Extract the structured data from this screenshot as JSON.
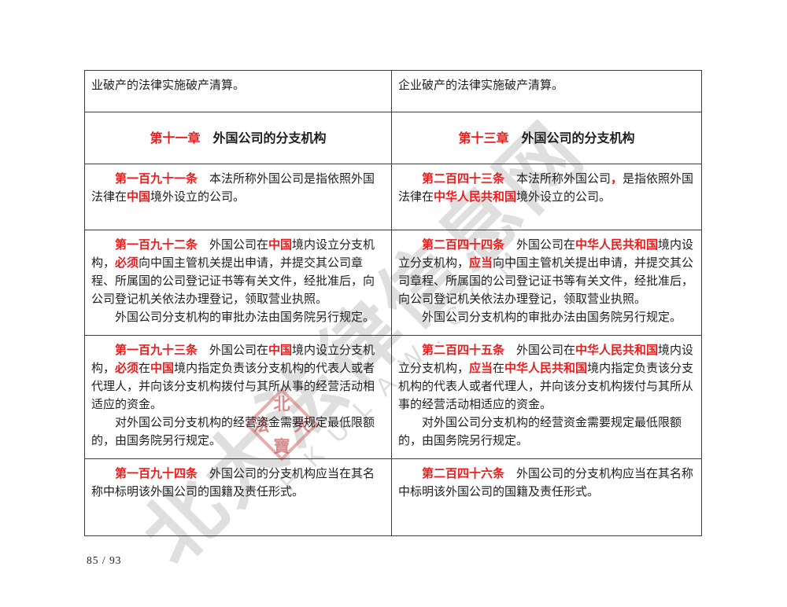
{
  "page": {
    "number_label": "85 / 93"
  },
  "colors": {
    "accent_red": "#ed1c1c",
    "border": "#3c3c3c",
    "watermark_gray": "#949494",
    "seal_pink": "#d67676"
  },
  "watermark": {
    "diagonal_text": "北大法律信息网",
    "latin_text": "PKULAW.COM",
    "seal_chars": {
      "top": "北",
      "right": "大",
      "left": "法",
      "bottom": "寶"
    }
  },
  "table": {
    "rows": [
      {
        "kind": "continuation",
        "left": {
          "paragraphs": [
            {
              "indent": false,
              "runs": [
                {
                  "t": "业破产的法律实施破产清算。",
                  "s": "p"
                }
              ]
            }
          ]
        },
        "right": {
          "paragraphs": [
            {
              "indent": false,
              "runs": [
                {
                  "t": "企业破产的法律实施破产清算。",
                  "s": "p"
                }
              ]
            }
          ]
        }
      },
      {
        "kind": "chapter",
        "left": {
          "paragraphs": [
            {
              "runs": [
                {
                  "t": "第十一章",
                  "s": "rb"
                },
                {
                  "t": "　",
                  "s": "b"
                },
                {
                  "t": "外国公司的分支机构",
                  "s": "b"
                }
              ]
            }
          ]
        },
        "right": {
          "paragraphs": [
            {
              "runs": [
                {
                  "t": "第十三章",
                  "s": "rb"
                },
                {
                  "t": "　",
                  "s": "b"
                },
                {
                  "t": "外国公司的分支机构",
                  "s": "b"
                }
              ]
            }
          ]
        }
      },
      {
        "kind": "article",
        "left": {
          "paragraphs": [
            {
              "indent": true,
              "runs": [
                {
                  "t": "第一百九十一条",
                  "s": "rb"
                },
                {
                  "t": "　本法所称外国公司是指依照外国法律在",
                  "s": "p"
                },
                {
                  "t": "中国",
                  "s": "rb"
                },
                {
                  "t": "境外设立的公司。",
                  "s": "p"
                }
              ]
            }
          ]
        },
        "right": {
          "paragraphs": [
            {
              "indent": true,
              "runs": [
                {
                  "t": "第二百四十三条",
                  "s": "rb"
                },
                {
                  "t": "　本法所称外国公司",
                  "s": "p"
                },
                {
                  "t": "，",
                  "s": "rb"
                },
                {
                  "t": "是指依照外国法律在",
                  "s": "p"
                },
                {
                  "t": "中华人民共和国",
                  "s": "rb"
                },
                {
                  "t": "境外设立的公司。",
                  "s": "p"
                }
              ]
            }
          ]
        }
      },
      {
        "kind": "article",
        "left": {
          "paragraphs": [
            {
              "indent": true,
              "runs": [
                {
                  "t": "第一百九十二条",
                  "s": "rb"
                },
                {
                  "t": "　外国公司在",
                  "s": "p"
                },
                {
                  "t": "中国",
                  "s": "rb"
                },
                {
                  "t": "境内设立分支机构，",
                  "s": "p"
                },
                {
                  "t": "必须",
                  "s": "rb"
                },
                {
                  "t": "向中国主管机关提出申请，并提交其公司章程、所属国的公司登记证书等有关文件，经批准后，向公司登记机关依法办理登记，领取营业执照。",
                  "s": "p"
                }
              ]
            },
            {
              "indent": true,
              "runs": [
                {
                  "t": "外国公司分支机构的审批办法由国务院另行规定。",
                  "s": "p"
                }
              ]
            }
          ]
        },
        "right": {
          "paragraphs": [
            {
              "indent": true,
              "runs": [
                {
                  "t": "第二百四十四条",
                  "s": "rb"
                },
                {
                  "t": "　外国公司在",
                  "s": "p"
                },
                {
                  "t": "中华人民共和国",
                  "s": "rb"
                },
                {
                  "t": "境内设立分支机构，",
                  "s": "p"
                },
                {
                  "t": "应当",
                  "s": "rb"
                },
                {
                  "t": "向中国主管机关提出申请，并提交其公司章程、所属国的公司登记证书等有关文件，经批准后，向公司登记机关依法办理登记，领取营业执照。",
                  "s": "p"
                }
              ]
            },
            {
              "indent": true,
              "runs": [
                {
                  "t": "外国公司分支机构的审批办法由国务院另行规定。",
                  "s": "p"
                }
              ]
            }
          ]
        }
      },
      {
        "kind": "article",
        "left": {
          "paragraphs": [
            {
              "indent": true,
              "runs": [
                {
                  "t": "第一百九十三条",
                  "s": "rb"
                },
                {
                  "t": "　外国公司在",
                  "s": "p"
                },
                {
                  "t": "中国",
                  "s": "rb"
                },
                {
                  "t": "境内设立分支机构，",
                  "s": "p"
                },
                {
                  "t": "必须",
                  "s": "rb"
                },
                {
                  "t": "在",
                  "s": "p"
                },
                {
                  "t": "中国",
                  "s": "rb"
                },
                {
                  "t": "境内指定负责该分支机构的代表人或者代理人，并向该分支机构拨付与其所从事的经营活动相适应的资金。",
                  "s": "p"
                }
              ]
            },
            {
              "indent": true,
              "runs": [
                {
                  "t": "对外国公司分支机构的经营资金需要规定最低限额的，由国务院另行规定。",
                  "s": "p"
                }
              ]
            }
          ]
        },
        "right": {
          "paragraphs": [
            {
              "indent": true,
              "runs": [
                {
                  "t": "第二百四十五条",
                  "s": "rb"
                },
                {
                  "t": "　外国公司在",
                  "s": "p"
                },
                {
                  "t": "中华人民共和国",
                  "s": "rb"
                },
                {
                  "t": "境内设立分支机构，",
                  "s": "p"
                },
                {
                  "t": "应当",
                  "s": "rb"
                },
                {
                  "t": "在",
                  "s": "p"
                },
                {
                  "t": "中华人民共和国",
                  "s": "rb"
                },
                {
                  "t": "境内指定负责该分支机构的代表人或者代理人，并向该分支机构拨付与其所从事的经营活动相适应的资金。",
                  "s": "p"
                }
              ]
            },
            {
              "indent": true,
              "runs": [
                {
                  "t": "对外国公司分支机构的经营资金需要规定最低限额的，由国务院另行规定。",
                  "s": "p"
                }
              ]
            }
          ]
        }
      },
      {
        "kind": "article",
        "left": {
          "paragraphs": [
            {
              "indent": true,
              "runs": [
                {
                  "t": "第一百九十四条",
                  "s": "rb"
                },
                {
                  "t": "　外国公司的分支机构应当在其名称中标明该外国公司的国籍及责任形式。",
                  "s": "p"
                }
              ]
            }
          ]
        },
        "right": {
          "paragraphs": [
            {
              "indent": true,
              "runs": [
                {
                  "t": "第二百四十六条",
                  "s": "rb"
                },
                {
                  "t": "　外国公司的分支机构应当在其名称中标明该外国公司的国籍及责任形式。",
                  "s": "p"
                }
              ]
            }
          ]
        }
      }
    ]
  }
}
